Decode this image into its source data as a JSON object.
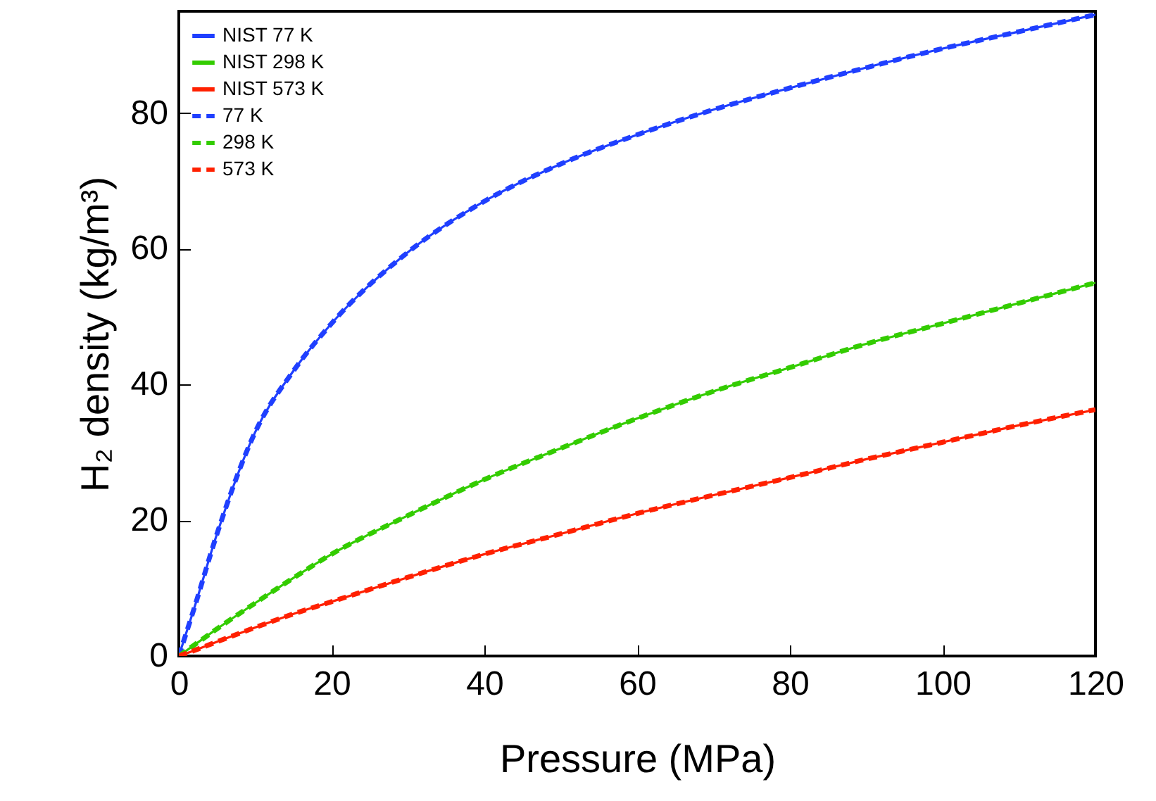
{
  "chart_data": {
    "type": "line",
    "xlabel": "Pressure (MPa)",
    "ylabel": "H₂ density (kg/m³)",
    "x": [
      0,
      2,
      5,
      10,
      15,
      20,
      30,
      40,
      50,
      60,
      70,
      80,
      90,
      100,
      110,
      120
    ],
    "xlim": [
      0,
      120
    ],
    "xticks": [
      0,
      20,
      40,
      60,
      80,
      100,
      120
    ],
    "ylim": [
      0,
      95
    ],
    "yticks": [
      0,
      20,
      40,
      60,
      80
    ],
    "legend": "top left",
    "series": [
      {
        "name": "NIST 77 K",
        "color": "#1f3fff",
        "line_style": "solid",
        "values": [
          0,
          7,
          18,
          33,
          42,
          49,
          59.5,
          67,
          72.5,
          76.8,
          80.5,
          83.7,
          86.7,
          89.5,
          92,
          94.5
        ]
      },
      {
        "name": "NIST 298 K",
        "color": "#33cc00",
        "line_style": "solid",
        "values": [
          0,
          1.6,
          4,
          7.8,
          11.5,
          15,
          20.7,
          26,
          30.6,
          35,
          39,
          42.5,
          46,
          49,
          52,
          55
        ]
      },
      {
        "name": "NIST 573 K",
        "color": "#ff2000",
        "line_style": "solid",
        "values": [
          0,
          0.8,
          2.1,
          4.2,
          6.2,
          8,
          11.6,
          15,
          18,
          21,
          23.7,
          26.3,
          29,
          31.5,
          34,
          36.3
        ]
      },
      {
        "name": "77 K",
        "color": "#1f3fff",
        "line_style": "dashed",
        "values": [
          0,
          7,
          18,
          33,
          42,
          49,
          59.5,
          67,
          72.5,
          76.8,
          80.5,
          83.7,
          86.7,
          89.5,
          92,
          94.5
        ]
      },
      {
        "name": "298 K",
        "color": "#33cc00",
        "line_style": "dashed",
        "values": [
          0,
          1.6,
          4,
          7.8,
          11.5,
          15,
          20.7,
          26,
          30.6,
          35,
          39,
          42.5,
          46,
          49,
          52,
          55
        ]
      },
      {
        "name": "573 K",
        "color": "#ff2000",
        "line_style": "dashed",
        "values": [
          0,
          0.8,
          2.1,
          4.2,
          6.2,
          8,
          11.6,
          15,
          18,
          21,
          23.7,
          26.3,
          29,
          31.5,
          34,
          36.3
        ]
      }
    ]
  }
}
